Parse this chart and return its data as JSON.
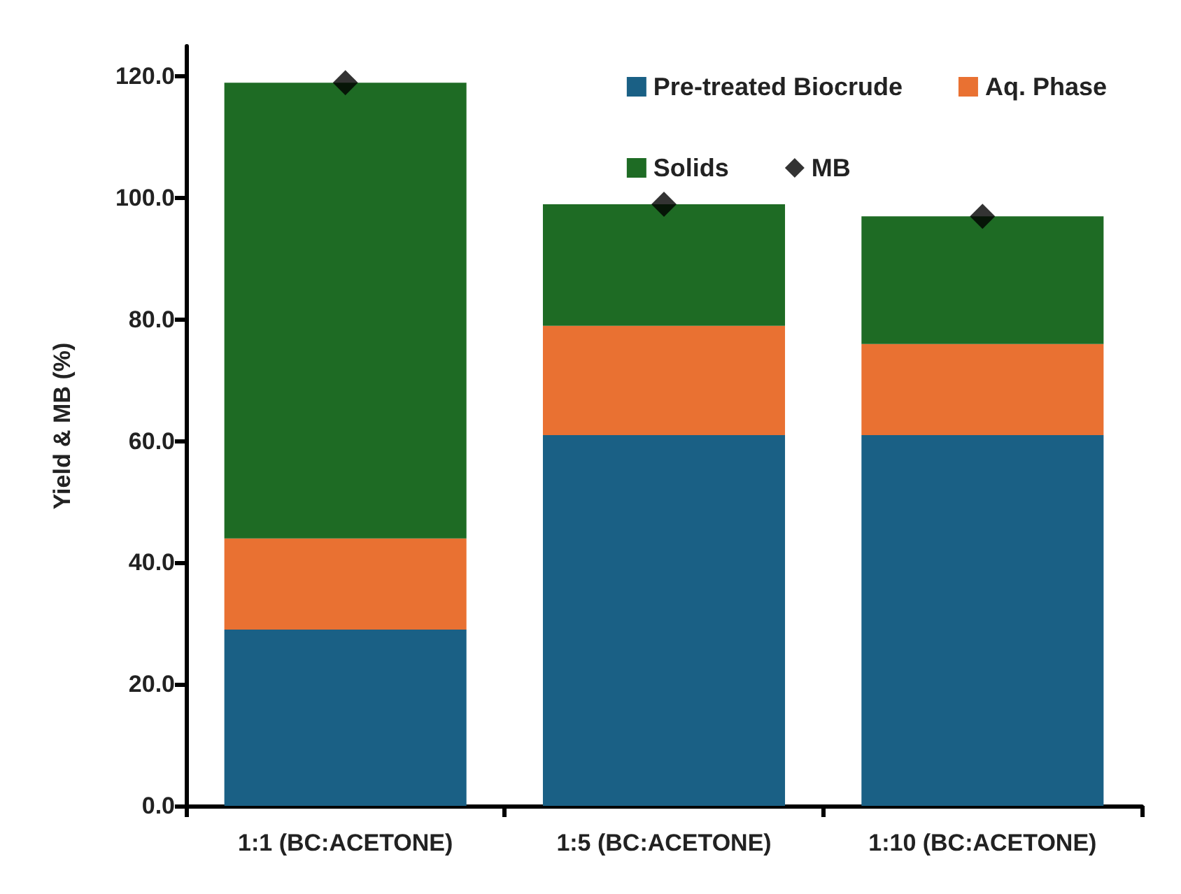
{
  "chart_data": {
    "type": "bar",
    "ylabel": "Yield & MB (%)",
    "categories": [
      "1:1 (BC:ACETONE)",
      "1:5 (BC:ACETONE)",
      "1:10 (BC:ACETONE)"
    ],
    "stacked": true,
    "ylim": [
      0,
      125
    ],
    "yticks": [
      {
        "value": 0,
        "label": "0.0"
      },
      {
        "value": 20,
        "label": "20.0"
      },
      {
        "value": 40,
        "label": "40.0"
      },
      {
        "value": 60,
        "label": "60.0"
      },
      {
        "value": 80,
        "label": "80.0"
      },
      {
        "value": 100,
        "label": "100.0"
      },
      {
        "value": 120,
        "label": "120.0"
      }
    ],
    "grid": false,
    "legend": "top right",
    "series": [
      {
        "name": "Pre-treated Biocrude",
        "color": "#1a6085",
        "values": [
          29,
          61,
          61
        ]
      },
      {
        "name": "Aq. Phase",
        "color": "#e97132",
        "values": [
          15,
          18,
          15
        ]
      },
      {
        "name": "Solids",
        "color": "#1e6b24",
        "values": [
          75,
          20,
          21
        ]
      },
      {
        "name": "MB",
        "type": "scatter",
        "marker": "diamond",
        "color": "#000000",
        "x": [
          "1:1 (BC:ACETONE)",
          "1:5 (BC:ACETONE)",
          "1:10 (BC:ACETONE)"
        ],
        "values": [
          119,
          99,
          97
        ]
      }
    ]
  }
}
